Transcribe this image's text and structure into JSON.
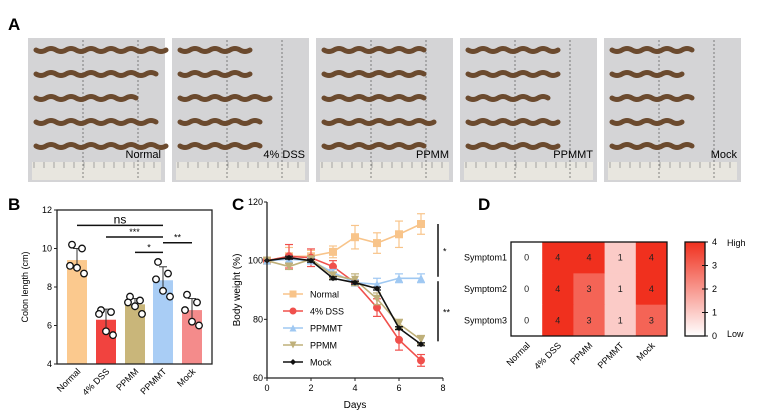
{
  "panels": {
    "a": "A",
    "b": "B",
    "c": "C",
    "d": "D"
  },
  "panel_a": {
    "photo_labels": [
      "Normal",
      "4% DSS",
      "PPMM",
      "PPMMT",
      "Mock"
    ]
  },
  "chart_data": [
    {
      "type": "bar",
      "panel": "B",
      "categories": [
        "Normal",
        "4% DSS",
        "PPMM",
        "PPMMT",
        "Mock"
      ],
      "values": [
        9.4,
        6.3,
        7.1,
        8.35,
        6.8
      ],
      "points": [
        [
          10.2,
          10.0,
          9.1,
          9.0,
          8.7
        ],
        [
          6.8,
          6.7,
          6.6,
          5.7,
          5.5
        ],
        [
          7.5,
          7.3,
          7.2,
          7.0,
          6.6
        ],
        [
          9.3,
          8.7,
          8.4,
          7.8,
          7.5
        ],
        [
          7.6,
          7.2,
          6.8,
          6.2,
          6.0
        ]
      ],
      "errors": [
        0.6,
        0.55,
        0.3,
        0.7,
        0.6
      ],
      "colors": [
        "#fbc98e",
        "#f1433f",
        "#c9b67a",
        "#a9cdf5",
        "#f48b8b"
      ],
      "ylabel": "Colon length (cm)",
      "ylim": [
        4,
        12
      ],
      "yticks": [
        4,
        6,
        8,
        10,
        12
      ],
      "significance": [
        {
          "from": 0,
          "to": 3,
          "y": 11.2,
          "label": "ns"
        },
        {
          "from": 1,
          "to": 3,
          "y": 10.6,
          "label": "***"
        },
        {
          "from": 2,
          "to": 3,
          "y": 9.8,
          "label": "*"
        },
        {
          "from": 3,
          "to": 4,
          "y": 10.3,
          "label": "**"
        }
      ]
    },
    {
      "type": "line",
      "panel": "C",
      "x": [
        0,
        1,
        2,
        3,
        4,
        5,
        6,
        7
      ],
      "xlabel": "Days",
      "ylabel": "Body weight (%)",
      "xlim": [
        0,
        8
      ],
      "ylim": [
        60,
        120
      ],
      "xticks": [
        0,
        2,
        4,
        6,
        8
      ],
      "yticks": [
        60,
        80,
        100,
        120
      ],
      "legend": "center-left",
      "series": [
        {
          "name": "Normal",
          "color": "#f8c48a",
          "marker": "square",
          "values": [
            100,
            101.5,
            101.5,
            103,
            108,
            106,
            109,
            112.5
          ],
          "errors": [
            0,
            3,
            2,
            2,
            4,
            3.5,
            4.5,
            3.5
          ]
        },
        {
          "name": "4% DSS",
          "color": "#f0504c",
          "marker": "circle",
          "values": [
            100,
            101.5,
            101,
            98,
            92.5,
            84,
            73,
            66
          ],
          "errors": [
            0,
            4,
            3,
            2,
            1,
            3,
            3.5,
            2
          ]
        },
        {
          "name": "PPMMT",
          "color": "#9fc8f2",
          "marker": "triangle-up",
          "values": [
            100,
            100.5,
            100,
            96,
            92.5,
            92,
            94,
            94
          ],
          "errors": [
            0,
            1,
            1,
            1,
            1,
            2,
            1.5,
            1.5
          ]
        },
        {
          "name": "PPMM",
          "color": "#bfb07a",
          "marker": "triangle-down",
          "values": [
            100,
            98,
            100.5,
            95,
            93.5,
            87,
            78.5,
            73
          ],
          "errors": [
            0,
            1,
            1,
            1,
            2,
            2,
            1.5,
            1.5
          ]
        },
        {
          "name": "Mock",
          "color": "#111111",
          "marker": "diamond",
          "values": [
            100,
            101,
            100,
            94,
            92.5,
            90.5,
            77,
            71.5
          ],
          "errors": [
            0,
            0.5,
            0.5,
            0.5,
            0.5,
            0.5,
            0.5,
            0.5
          ]
        }
      ],
      "significance": [
        {
          "label": "*",
          "y": [
            94.5,
            112.5
          ]
        },
        {
          "label": "**",
          "y": [
            72.5,
            93
          ]
        }
      ]
    },
    {
      "type": "heatmap",
      "panel": "D",
      "rows": [
        "Symptom1",
        "Symptom2",
        "Symptom3"
      ],
      "columns": [
        "Normal",
        "4% DSS",
        "PPMM",
        "PPMMT",
        "Mock"
      ],
      "values": [
        [
          0,
          4,
          4,
          1,
          4
        ],
        [
          0,
          4,
          3,
          1,
          4
        ],
        [
          0,
          4,
          3,
          1,
          3
        ]
      ],
      "colorbar": {
        "range": [
          0,
          4
        ],
        "ticks": [
          0,
          1,
          2,
          3,
          4
        ],
        "high_label": "High",
        "low_label": "Low",
        "low_color": "#ffffff",
        "high_color": "#f0301e"
      }
    }
  ]
}
